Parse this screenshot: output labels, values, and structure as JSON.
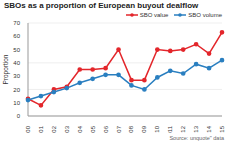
{
  "chart_data": {
    "type": "line",
    "title": "SBOs as a proportion of European buyout dealflow",
    "subtitle": "Source: unquote\" data",
    "y_label": "Proportion",
    "categories": [
      "2000",
      "2001",
      "2002",
      "2003",
      "2004",
      "2005",
      "2006",
      "2007",
      "2008",
      "2009",
      "2010",
      "2011",
      "2012",
      "2013",
      "2014",
      "2015"
    ],
    "series": [
      {
        "name": "SBO value",
        "color": "#e3262b",
        "marker": "circle",
        "values": [
          13,
          8,
          20,
          22,
          35,
          35,
          36,
          50,
          27,
          27,
          50,
          49,
          50,
          54,
          47,
          63
        ]
      },
      {
        "name": "SBO volume",
        "color": "#2a7fc0",
        "marker": "circle",
        "values": [
          12,
          15,
          18,
          21,
          25,
          28,
          31,
          31,
          23,
          20,
          29,
          34,
          32,
          39,
          36,
          42
        ]
      }
    ],
    "ylim": [
      0,
      70
    ],
    "yticks": [
      0,
      10,
      20,
      30,
      40,
      50,
      60,
      70
    ],
    "grid": true,
    "legend": "top-right"
  }
}
